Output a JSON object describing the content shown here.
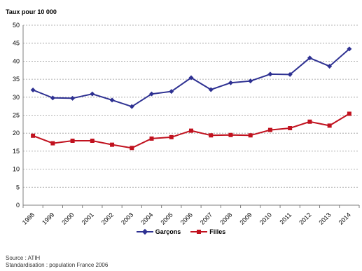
{
  "chart_data": {
    "type": "line",
    "title": "",
    "ylabel": "Taux pour 10 000",
    "xlabel": "",
    "categories": [
      "1998",
      "1999",
      "2000",
      "2001",
      "2002",
      "2003",
      "2004",
      "2005",
      "2006",
      "2007",
      "2008",
      "2009",
      "2010",
      "2011",
      "2012",
      "2013",
      "2014"
    ],
    "series": [
      {
        "name": "Garçons",
        "color": "#2e3192",
        "marker": "diamond",
        "values": [
          32.0,
          29.8,
          29.7,
          30.9,
          29.2,
          27.4,
          30.9,
          31.6,
          35.4,
          32.1,
          34.0,
          34.5,
          36.4,
          36.3,
          40.9,
          38.6,
          43.4
        ]
      },
      {
        "name": "Filles",
        "color": "#c1121f",
        "marker": "square",
        "values": [
          19.3,
          17.2,
          17.9,
          17.9,
          16.8,
          15.9,
          18.5,
          18.9,
          20.7,
          19.4,
          19.5,
          19.4,
          20.9,
          21.4,
          23.2,
          22.1,
          25.4
        ]
      }
    ],
    "ylim": [
      0,
      50
    ],
    "yticks": [
      0,
      5,
      10,
      15,
      20,
      25,
      30,
      35,
      40,
      45,
      50
    ],
    "grid": true,
    "legend_position": "bottom"
  },
  "footer": {
    "source": "Source : ATIH",
    "standardisation": "Standardisation : population France 2006"
  }
}
